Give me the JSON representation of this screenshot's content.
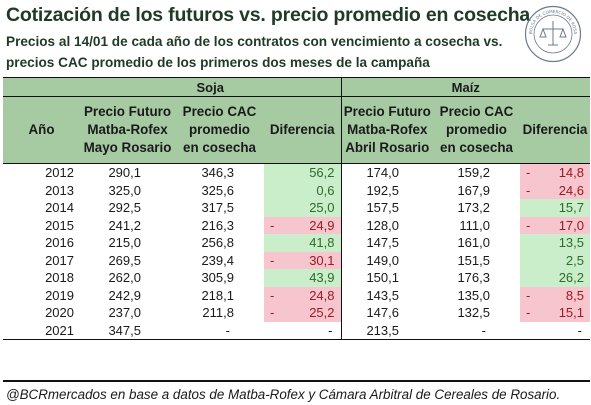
{
  "title": "Cotización de los futuros  vs. precio promedio en cosecha",
  "subtitle_line1": "Precios al 14/01 de cada año de los contratos con vencimiento a cosecha vs.",
  "subtitle_line2": "precios CAC promedio de los primeros dos meses de la campaña",
  "groups": {
    "soja": "Soja",
    "maiz": "Maíz"
  },
  "headers": {
    "year": "Año",
    "soja_future": [
      "Precio Futuro",
      "Matba-Rofex",
      "Mayo Rosario"
    ],
    "soja_cac": [
      "Precio CAC",
      "promedio",
      "en cosecha"
    ],
    "soja_diff": "Diferencia",
    "maiz_future": [
      "Precio Futuro",
      "Matba-Rofex",
      "Abril Rosario"
    ],
    "maiz_cac": [
      "Precio CAC",
      "promedio",
      "en cosecha"
    ],
    "maiz_diff": "Diferencia"
  },
  "rows": [
    {
      "year": "2012",
      "sf": "290,1",
      "sc": "346,3",
      "sd": "56,2",
      "sdn": false,
      "mf": "174,0",
      "mc": "159,2",
      "md": "14,8",
      "mdn": true
    },
    {
      "year": "2013",
      "sf": "325,0",
      "sc": "325,6",
      "sd": "0,6",
      "sdn": false,
      "mf": "192,5",
      "mc": "167,9",
      "md": "24,6",
      "mdn": true
    },
    {
      "year": "2014",
      "sf": "292,5",
      "sc": "317,5",
      "sd": "25,0",
      "sdn": false,
      "mf": "157,5",
      "mc": "173,2",
      "md": "15,7",
      "mdn": false
    },
    {
      "year": "2015",
      "sf": "241,2",
      "sc": "216,3",
      "sd": "24,9",
      "sdn": true,
      "mf": "128,0",
      "mc": "111,0",
      "md": "17,0",
      "mdn": true
    },
    {
      "year": "2016",
      "sf": "215,0",
      "sc": "256,8",
      "sd": "41,8",
      "sdn": false,
      "mf": "147,5",
      "mc": "161,0",
      "md": "13,5",
      "mdn": false
    },
    {
      "year": "2017",
      "sf": "269,5",
      "sc": "239,4",
      "sd": "30,1",
      "sdn": true,
      "mf": "149,0",
      "mc": "151,5",
      "md": "2,5",
      "mdn": false
    },
    {
      "year": "2018",
      "sf": "262,0",
      "sc": "305,9",
      "sd": "43,9",
      "sdn": false,
      "mf": "150,1",
      "mc": "176,3",
      "md": "26,2",
      "mdn": false
    },
    {
      "year": "2019",
      "sf": "242,9",
      "sc": "218,1",
      "sd": "24,8",
      "sdn": true,
      "mf": "143,5",
      "mc": "135,0",
      "md": "8,5",
      "mdn": true
    },
    {
      "year": "2020",
      "sf": "237,0",
      "sc": "211,8",
      "sd": "25,2",
      "sdn": true,
      "mf": "147,6",
      "mc": "132,5",
      "md": "15,1",
      "mdn": true
    },
    {
      "year": "2021",
      "sf": "347,5",
      "sc": "-",
      "sd": "-",
      "sdn": null,
      "mf": "213,5",
      "mc": "-",
      "md": "-",
      "mdn": null
    }
  ],
  "footer": "@BCRmercados en base a datos de Matba-Rofex y Cámara Arbitral de Cereales de Rosario.",
  "seal_text": "BOLSA DE COMERCIO DE ROSARIO",
  "colors": {
    "header_bg": "#a6cba3",
    "positive_bg": "#c9eec9",
    "negative_bg": "#f7c5cd",
    "title": "#1f3a25"
  }
}
